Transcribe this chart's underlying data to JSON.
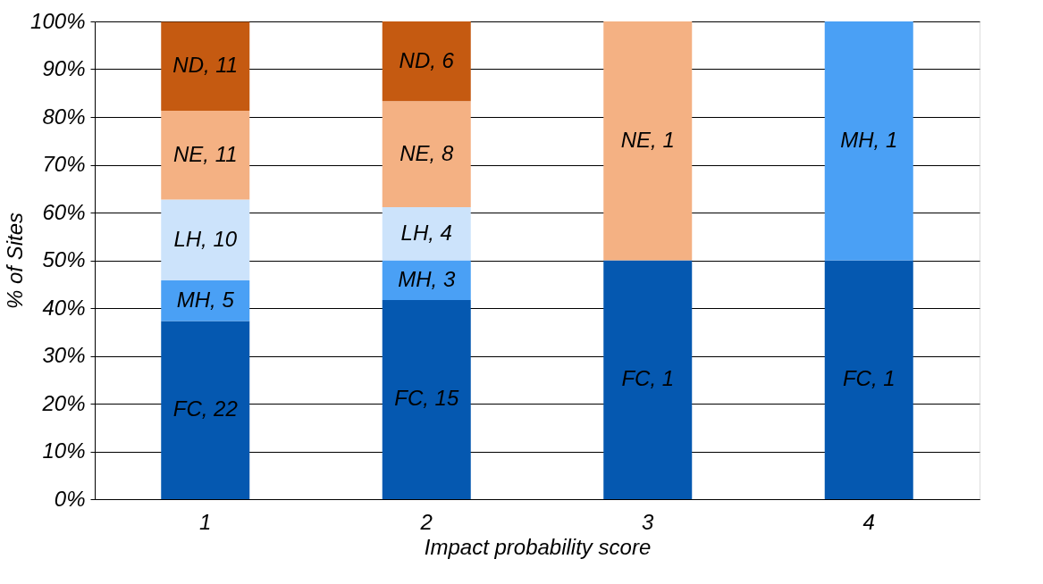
{
  "chart_data": {
    "type": "bar",
    "stacked": true,
    "xlabel": "Impact probability score",
    "ylabel": "% of Sites",
    "categories": [
      "1",
      "2",
      "3",
      "4"
    ],
    "series": [
      {
        "color": "#0558b0",
        "values": [
          37.3,
          41.7,
          50,
          50
        ]
      },
      {
        "color": "#4aa0f5",
        "values": [
          8.5,
          8.3,
          null,
          50
        ]
      },
      {
        "color": "#cce3fb",
        "values": [
          16.9,
          11.1,
          null,
          null
        ]
      },
      {
        "color": "#f4b183",
        "values": [
          18.6,
          22.2,
          50,
          null
        ]
      },
      {
        "color": "#c55a11",
        "values": [
          18.6,
          16.7,
          null,
          null
        ]
      }
    ],
    "annotations": [
      "FC, 22",
      "MH, 5",
      "LH, 10",
      "NE, 11",
      "ND, 11",
      "FC, 15",
      "MH, 3",
      "LH, 4",
      "NE, 8",
      "ND, 6",
      "FC, 1",
      "NE, 1",
      "FC, 1",
      "MH, 1"
    ],
    "legend": false,
    "ylim": [
      0,
      100
    ],
    "yticks": [
      {
        "value": 0,
        "label": "0%"
      },
      {
        "value": 10,
        "label": "10%"
      },
      {
        "value": 20,
        "label": "20%"
      },
      {
        "value": 30,
        "label": "30%"
      },
      {
        "value": 40,
        "label": "40%"
      },
      {
        "value": 50,
        "label": "50%"
      },
      {
        "value": 60,
        "label": "60%"
      },
      {
        "value": 70,
        "label": "70%"
      },
      {
        "value": 80,
        "label": "80%"
      },
      {
        "value": 90,
        "label": "90%"
      },
      {
        "value": 100,
        "label": "100%"
      }
    ],
    "grid": "y"
  }
}
